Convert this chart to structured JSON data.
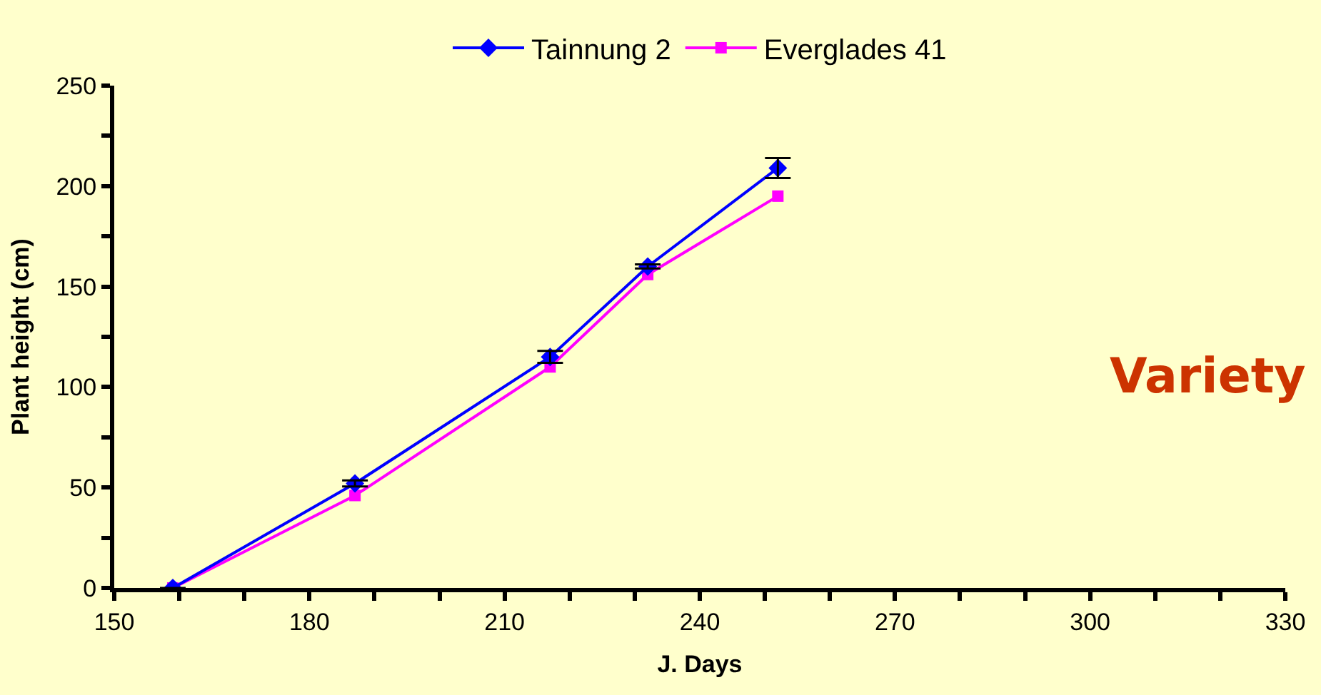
{
  "chart_data": {
    "type": "line",
    "xlabel": "J. Days",
    "ylabel": "Plant height (cm)",
    "x": [
      159,
      187,
      217,
      232,
      252
    ],
    "series": [
      {
        "name": "Tainnung 2",
        "color": "#0000ff",
        "marker": "diamond",
        "values": [
          0,
          52,
          115,
          160,
          209
        ],
        "errors": [
          null,
          1.5,
          3,
          1,
          5
        ]
      },
      {
        "name": "Everglades 41",
        "color": "#ff00ff",
        "marker": "square",
        "values": [
          0,
          46,
          110,
          156,
          195
        ]
      }
    ],
    "xlim": [
      150,
      330
    ],
    "xticks": [
      150,
      {
        "value": 160,
        "label": null
      },
      {
        "value": 170,
        "label": null
      },
      180,
      {
        "value": 190,
        "label": null
      },
      {
        "value": 200,
        "label": null
      },
      210,
      {
        "value": 220,
        "label": null
      },
      {
        "value": 230,
        "label": null
      },
      240,
      {
        "value": 250,
        "label": null
      },
      {
        "value": 260,
        "label": null
      },
      270,
      {
        "value": 280,
        "label": null
      },
      {
        "value": 290,
        "label": null
      },
      300,
      {
        "value": 310,
        "label": null
      },
      {
        "value": 320,
        "label": null
      },
      330
    ],
    "ylim": [
      0,
      250
    ],
    "yticks": [
      0,
      {
        "value": 25,
        "label": null
      },
      50,
      {
        "value": 75,
        "label": null
      },
      100,
      {
        "value": 125,
        "label": null
      },
      150,
      {
        "value": 175,
        "label": null
      },
      200,
      {
        "value": 225,
        "label": null
      },
      250
    ],
    "grid": false,
    "legend": "top",
    "line_style": "solid",
    "annotations": [
      "Variety"
    ]
  }
}
